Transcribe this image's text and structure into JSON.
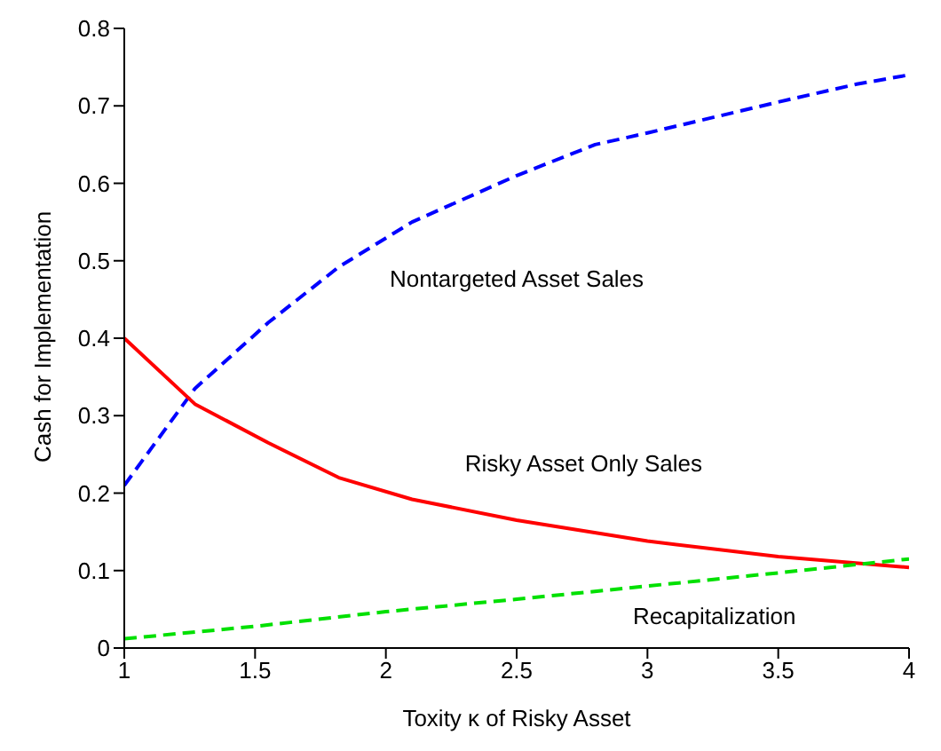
{
  "chart_data": {
    "type": "line",
    "xlabel": "Toxity κ of Risky Asset",
    "ylabel": "Cash for Implementation",
    "xlim": [
      1,
      4
    ],
    "xticks": [
      1,
      1.5,
      2,
      2.5,
      3,
      3.5,
      4
    ],
    "ylim": [
      0,
      0.8
    ],
    "yticks": [
      0,
      0.1,
      0.2,
      0.3,
      0.4,
      0.5,
      0.6,
      0.7,
      0.8
    ],
    "grid": false,
    "legend": false,
    "marker": "none",
    "series": [
      {
        "name": "Nontargeted Asset Sales",
        "color": "#0000ff",
        "line_style": "dashed",
        "x": [
          1,
          1.27,
          1.55,
          1.82,
          2.1,
          2.5,
          2.8,
          3,
          3.5,
          3.8,
          4
        ],
        "values": [
          0.21,
          0.335,
          0.42,
          0.492,
          0.55,
          0.61,
          0.65,
          0.665,
          0.705,
          0.728,
          0.74
        ]
      },
      {
        "name": "Risky Asset Only Sales",
        "color": "#ff0000",
        "line_style": "solid",
        "x": [
          1,
          1.27,
          1.55,
          1.82,
          2.1,
          2.5,
          3,
          3.5,
          4
        ],
        "values": [
          0.4,
          0.315,
          0.265,
          0.22,
          0.192,
          0.165,
          0.138,
          0.118,
          0.104
        ]
      },
      {
        "name": "Recapitalization",
        "color": "#00e000",
        "line_style": "dashed",
        "x": [
          1,
          1.5,
          2,
          2.5,
          3,
          3.5,
          4
        ],
        "values": [
          0.012,
          0.028,
          0.047,
          0.063,
          0.08,
          0.097,
          0.115
        ]
      }
    ]
  }
}
